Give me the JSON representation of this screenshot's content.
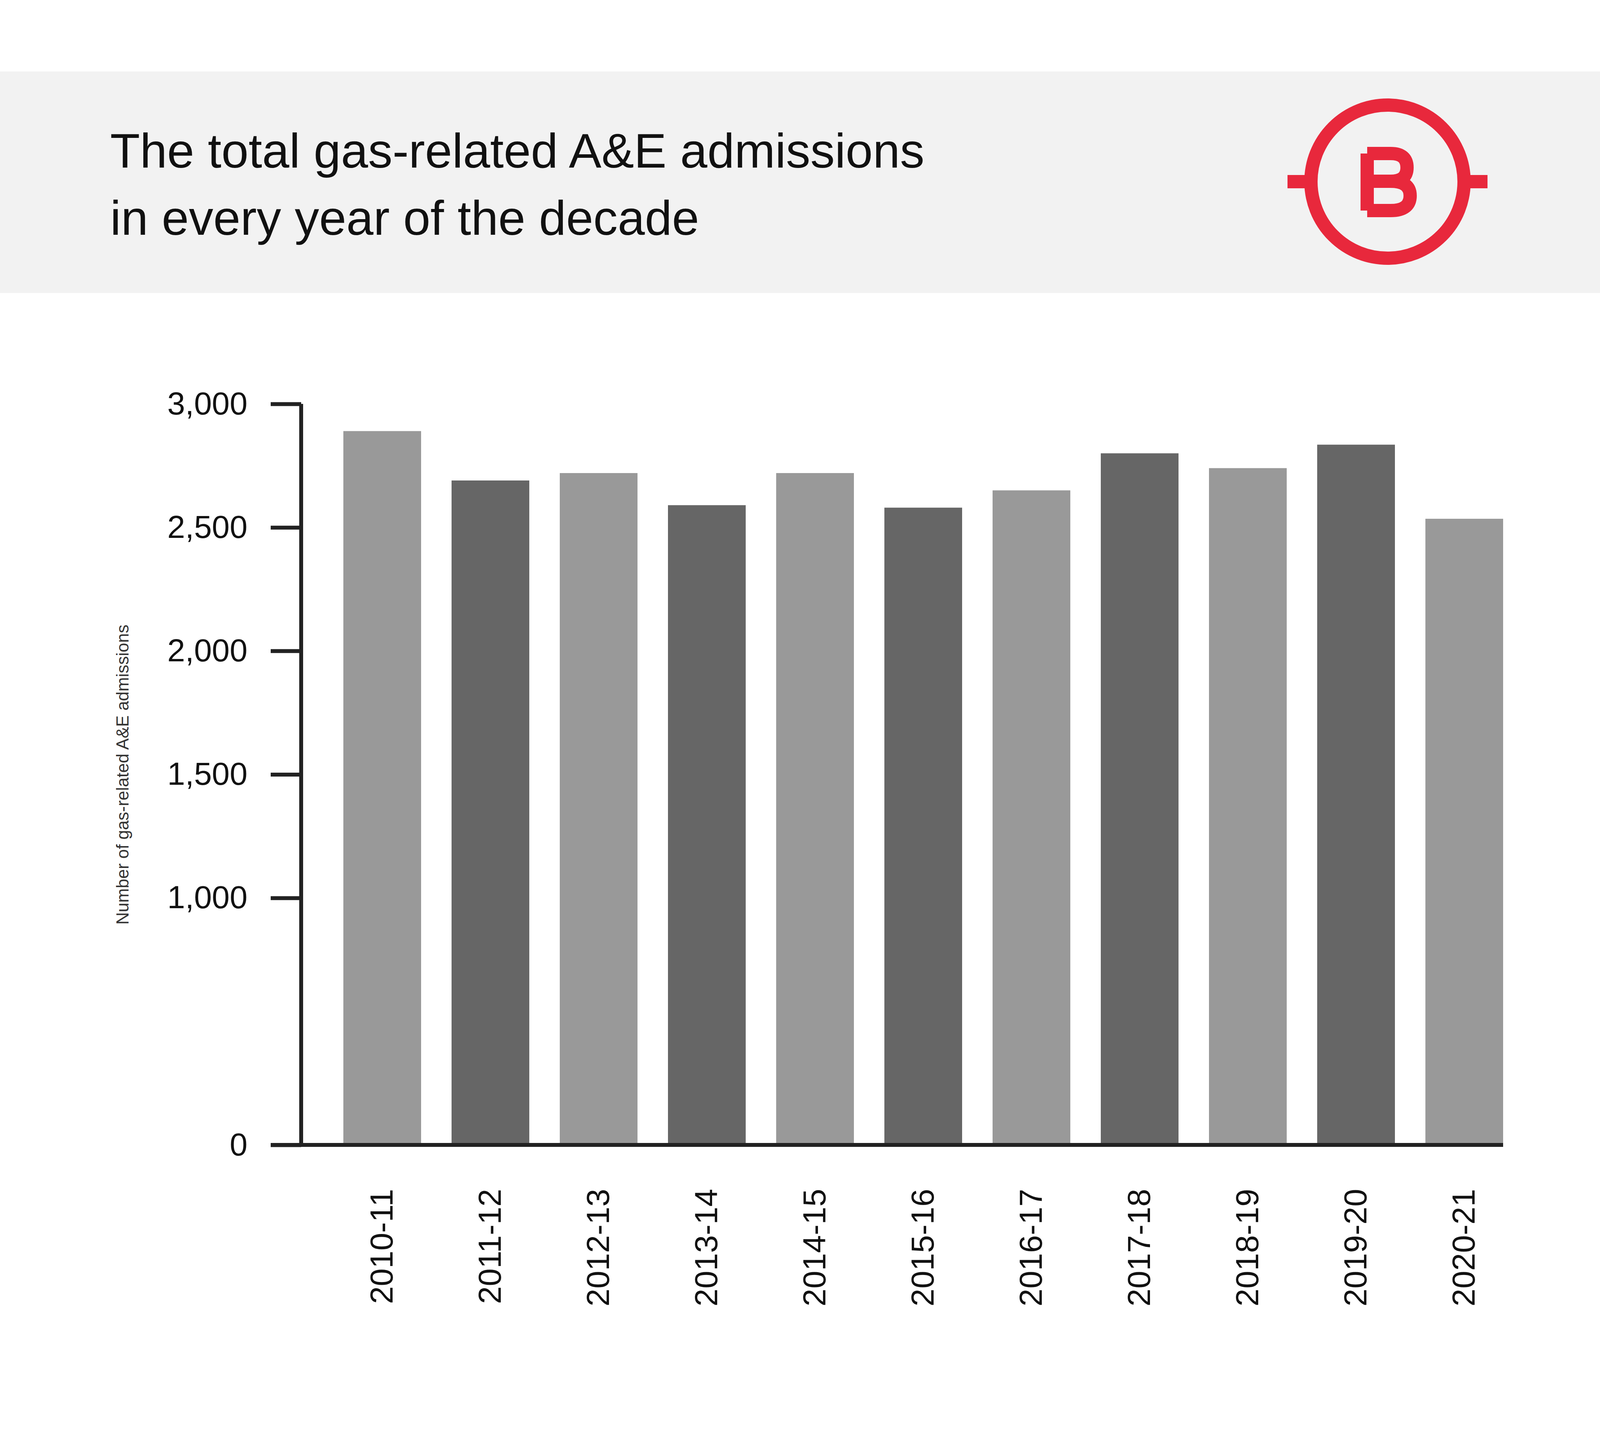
{
  "chart_data": {
    "type": "bar",
    "title": "The total gas-related A&E admissions\nin every year of the decade",
    "ylabel": "Number of gas-related A&E admissions",
    "categories": [
      "2010-11",
      "2011-12",
      "2012-13",
      "2013-14",
      "2014-15",
      "2015-16",
      "2016-17",
      "2017-18",
      "2018-19",
      "2019-20",
      "2020-21"
    ],
    "values": [
      2890,
      2690,
      2720,
      2590,
      2720,
      2580,
      2650,
      2800,
      2740,
      2835,
      2535
    ],
    "colors": [
      "#999999",
      "#666666",
      "#999999",
      "#666666",
      "#999999",
      "#666666",
      "#999999",
      "#666666",
      "#999999",
      "#666666",
      "#999999"
    ],
    "ylim": [
      0,
      3000
    ],
    "yticks": [
      0,
      1000,
      1500,
      2000,
      2500,
      3000
    ],
    "grid": false
  }
}
